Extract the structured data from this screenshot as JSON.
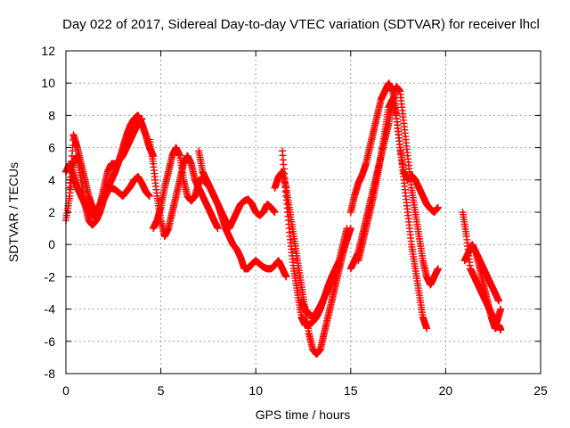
{
  "chart_data": {
    "type": "scatter",
    "title": "Day 022 of 2017, Sidereal Day-to-day VTEC variation (SDTVAR) for receiver lhcl",
    "xlabel": "GPS time / hours",
    "ylabel": "SDTVAR / TECUs",
    "xlim": [
      0,
      25
    ],
    "ylim": [
      -8,
      12
    ],
    "xticks": [
      "0",
      "5",
      "10",
      "15",
      "20",
      "25"
    ],
    "yticks": [
      "-8",
      "-6",
      "-4",
      "-2",
      "0",
      "2",
      "4",
      "6",
      "8",
      "10",
      "12"
    ],
    "grid": true,
    "marker": "+",
    "color": "#ff0000",
    "series": [
      {
        "x": [
          0.0,
          0.2,
          0.4,
          0.6,
          0.8,
          1.0,
          1.2,
          1.4,
          1.6,
          1.8,
          2.0,
          2.2,
          2.4,
          2.6,
          2.8,
          3.0,
          3.2,
          3.4,
          3.6,
          3.8,
          4.0,
          4.2,
          4.4,
          4.6
        ],
        "y": [
          4.5,
          5.0,
          4.2,
          3.5,
          3.0,
          2.5,
          2.0,
          1.8,
          2.0,
          2.5,
          3.0,
          3.5,
          4.0,
          4.5,
          5.2,
          6.0,
          6.8,
          7.4,
          7.8,
          8.0,
          7.5,
          6.8,
          6.0,
          5.5
        ]
      },
      {
        "x": [
          0.0,
          0.2,
          0.4,
          0.6,
          0.8,
          1.0,
          1.2,
          1.4,
          1.6,
          1.8,
          2.0,
          2.2,
          2.4,
          2.6,
          2.8,
          3.0,
          3.2,
          3.4,
          3.6,
          3.8,
          4.0,
          4.2,
          4.4
        ],
        "y": [
          1.5,
          3.0,
          5.0,
          5.5,
          4.0,
          2.5,
          1.5,
          1.2,
          1.5,
          2.0,
          2.8,
          3.3,
          3.5,
          3.4,
          3.2,
          3.0,
          3.3,
          3.6,
          4.0,
          4.2,
          3.8,
          3.3,
          3.0
        ]
      },
      {
        "x": [
          0.2,
          0.4,
          0.6,
          0.8,
          1.0,
          1.2,
          1.4,
          1.6,
          1.8,
          2.0,
          2.2,
          2.4,
          2.6,
          2.8,
          3.0,
          3.2,
          3.4,
          3.6,
          3.8,
          4.0
        ],
        "y": [
          3.5,
          6.8,
          6.0,
          5.0,
          4.0,
          3.0,
          2.3,
          2.0,
          2.5,
          3.5,
          4.5,
          5.0,
          5.0,
          5.2,
          5.5,
          6.0,
          6.5,
          7.0,
          7.5,
          7.8
        ]
      },
      {
        "x": [
          4.4,
          4.6,
          4.8,
          5.0,
          5.2,
          5.4,
          5.6,
          5.8,
          6.0,
          6.2,
          6.4,
          6.6,
          6.8,
          7.0,
          7.2,
          7.4,
          7.6,
          7.8,
          8.0
        ],
        "y": [
          6.5,
          5.0,
          3.0,
          1.5,
          0.5,
          1.0,
          2.0,
          3.0,
          4.0,
          5.0,
          5.5,
          5.0,
          4.0,
          3.5,
          3.0,
          2.5,
          2.0,
          1.5,
          1.0
        ]
      },
      {
        "x": [
          4.6,
          4.8,
          5.0,
          5.2,
          5.4,
          5.6,
          5.8,
          6.0,
          6.2,
          6.4,
          6.6,
          6.8,
          7.0,
          7.2,
          7.4,
          7.6,
          7.8
        ],
        "y": [
          1.0,
          1.5,
          2.3,
          3.5,
          4.5,
          5.5,
          6.0,
          5.5,
          4.0,
          3.0,
          2.7,
          3.0,
          3.8,
          4.2,
          4.0,
          3.5,
          3.0
        ]
      },
      {
        "x": [
          7.0,
          7.2,
          7.4,
          7.6,
          7.8,
          8.0,
          8.2,
          8.4,
          8.6,
          8.8,
          9.0,
          9.2,
          9.4,
          9.6,
          9.8,
          10.0,
          10.2,
          10.4,
          10.6,
          10.8,
          11.0,
          11.2,
          11.4,
          11.6
        ],
        "y": [
          5.8,
          4.5,
          4.0,
          3.5,
          3.0,
          2.5,
          1.8,
          1.0,
          0.5,
          0.0,
          -0.3,
          -0.8,
          -1.5,
          -1.5,
          -1.2,
          -1.0,
          -1.2,
          -1.4,
          -1.5,
          -1.5,
          -1.3,
          -1.0,
          -1.5,
          -2.0
        ]
      },
      {
        "x": [
          7.2,
          7.4,
          7.6,
          7.8,
          8.0,
          8.2,
          8.4,
          8.6,
          8.8,
          9.0,
          9.2,
          9.4,
          9.6,
          9.8,
          10.0,
          10.2,
          10.4,
          10.6,
          10.8,
          11.0
        ],
        "y": [
          4.0,
          3.8,
          3.5,
          3.0,
          2.5,
          2.0,
          1.5,
          1.0,
          1.5,
          2.0,
          2.5,
          2.7,
          2.8,
          2.5,
          2.0,
          1.8,
          2.0,
          2.5,
          2.3,
          2.0
        ]
      },
      {
        "x": [
          11.0,
          11.2,
          11.4,
          11.6,
          11.8,
          12.0,
          12.2,
          12.4,
          12.6,
          12.8,
          13.0,
          13.2,
          13.4,
          13.6,
          13.8,
          14.0,
          14.2,
          14.4,
          14.6,
          14.8,
          15.0
        ],
        "y": [
          3.5,
          4.2,
          4.5,
          3.5,
          2.0,
          0.5,
          -1.0,
          -2.5,
          -4.0,
          -5.5,
          -6.5,
          -6.8,
          -6.5,
          -5.5,
          -4.5,
          -3.5,
          -2.5,
          -1.5,
          -0.5,
          0.3,
          1.0
        ]
      },
      {
        "x": [
          11.4,
          11.6,
          11.8,
          12.0,
          12.2,
          12.4,
          12.6,
          12.8,
          13.0,
          13.2,
          13.4,
          13.6,
          13.8,
          14.0,
          14.2,
          14.4,
          14.6,
          14.8
        ],
        "y": [
          5.8,
          3.0,
          0.5,
          -1.5,
          -3.0,
          -4.5,
          -5.0,
          -5.0,
          -4.8,
          -4.5,
          -4.0,
          -3.3,
          -2.6,
          -2.0,
          -1.5,
          -1.0,
          0.0,
          1.0
        ]
      },
      {
        "x": [
          12.4,
          12.6,
          12.8,
          13.0,
          13.2,
          13.4,
          13.6,
          13.8,
          14.0,
          14.2,
          14.4
        ],
        "y": [
          -3.5,
          -4.0,
          -4.3,
          -4.5,
          -4.2,
          -3.8,
          -3.3,
          -2.8,
          -2.3,
          -1.8,
          -1.2
        ]
      },
      {
        "x": [
          15.0,
          15.2,
          15.4,
          15.6,
          15.8,
          16.0,
          16.2,
          16.4,
          16.6,
          16.8,
          17.0,
          17.2,
          17.4,
          17.6,
          17.8,
          18.0,
          18.2,
          18.4,
          18.6,
          18.8,
          19.0
        ],
        "y": [
          2.0,
          3.0,
          3.8,
          4.3,
          5.0,
          6.0,
          7.0,
          8.0,
          9.0,
          9.5,
          10.0,
          9.5,
          8.0,
          6.0,
          4.0,
          2.0,
          0.0,
          -1.5,
          -3.0,
          -4.5,
          -5.2
        ]
      },
      {
        "x": [
          15.0,
          15.2,
          15.4,
          15.6,
          15.8,
          16.0,
          16.2,
          16.4,
          16.6,
          16.8,
          17.0,
          17.2,
          17.4,
          17.6,
          17.8,
          18.0,
          18.2,
          18.4,
          18.6,
          18.8,
          19.0,
          19.2,
          19.4,
          19.6
        ],
        "y": [
          -1.5,
          -1.0,
          -0.5,
          0.5,
          1.5,
          2.5,
          3.5,
          4.5,
          5.5,
          6.5,
          7.5,
          8.8,
          9.8,
          9.5,
          7.5,
          5.5,
          3.5,
          2.0,
          0.5,
          -1.0,
          -2.0,
          -2.5,
          -2.0,
          -1.5
        ]
      },
      {
        "x": [
          15.4,
          15.6,
          15.8,
          16.0,
          16.2,
          16.4,
          16.6,
          16.8,
          17.0,
          17.2,
          17.4,
          17.6,
          17.8,
          18.0,
          18.2,
          18.4,
          18.6,
          18.8,
          19.0,
          19.2,
          19.4,
          19.6
        ],
        "y": [
          -1.0,
          0.0,
          1.0,
          2.0,
          3.0,
          4.2,
          5.5,
          7.0,
          8.5,
          9.0,
          8.0,
          6.0,
          4.5,
          4.0,
          4.3,
          4.0,
          3.5,
          3.0,
          2.5,
          2.2,
          2.0,
          2.3
        ]
      },
      {
        "x": [
          21.0,
          21.2,
          21.4,
          21.6,
          21.8,
          22.0,
          22.2,
          22.4,
          22.6,
          22.8,
          22.9
        ],
        "y": [
          -1.0,
          -0.5,
          0.0,
          -0.5,
          -1.5,
          -2.5,
          -3.5,
          -4.5,
          -5.2,
          -5.0,
          -5.3
        ]
      },
      {
        "x": [
          20.9,
          21.1,
          21.3,
          21.5,
          21.7,
          21.9,
          22.1,
          22.3,
          22.5,
          22.7,
          22.9
        ],
        "y": [
          2.0,
          0.5,
          -1.5,
          -2.0,
          -2.5,
          -3.0,
          -3.5,
          -4.0,
          -4.5,
          -4.8,
          -4.0
        ]
      },
      {
        "x": [
          21.6,
          21.8,
          22.0,
          22.2,
          22.4,
          22.6,
          22.8
        ],
        "y": [
          -0.5,
          -1.0,
          -1.5,
          -2.0,
          -2.5,
          -3.0,
          -3.5
        ]
      }
    ]
  }
}
